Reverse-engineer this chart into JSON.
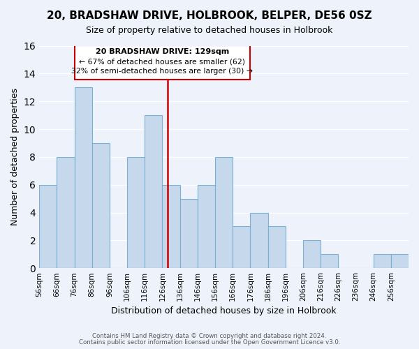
{
  "title": "20, BRADSHAW DRIVE, HOLBROOK, BELPER, DE56 0SZ",
  "subtitle": "Size of property relative to detached houses in Holbrook",
  "xlabel": "Distribution of detached houses by size in Holbrook",
  "ylabel": "Number of detached properties",
  "footnote1": "Contains HM Land Registry data © Crown copyright and database right 2024.",
  "footnote2": "Contains public sector information licensed under the Open Government Licence v3.0.",
  "bin_labels": [
    "56sqm",
    "66sqm",
    "76sqm",
    "86sqm",
    "96sqm",
    "106sqm",
    "116sqm",
    "126sqm",
    "136sqm",
    "146sqm",
    "156sqm",
    "166sqm",
    "176sqm",
    "186sqm",
    "196sqm",
    "206sqm",
    "216sqm",
    "226sqm",
    "236sqm",
    "246sqm",
    "256sqm"
  ],
  "counts": [
    6,
    8,
    13,
    9,
    0,
    8,
    11,
    6,
    5,
    6,
    8,
    3,
    4,
    3,
    0,
    2,
    1,
    0,
    0,
    1,
    1
  ],
  "bin_edges": [
    56,
    66,
    76,
    86,
    96,
    106,
    116,
    126,
    136,
    146,
    156,
    166,
    176,
    186,
    196,
    206,
    216,
    226,
    236,
    246,
    256,
    266
  ],
  "property_size": 129,
  "bar_color": "#c5d8ec",
  "bar_edge_color": "#7bafd4",
  "vline_color": "#cc0000",
  "box_text_line1": "20 BRADSHAW DRIVE: 129sqm",
  "box_text_line2": "← 67% of detached houses are smaller (62)",
  "box_text_line3": "32% of semi-detached houses are larger (30) →",
  "box_color": "#cc0000",
  "ylim": [
    0,
    16
  ],
  "yticks": [
    0,
    2,
    4,
    6,
    8,
    10,
    12,
    14,
    16
  ],
  "background_color": "#eef2fb",
  "grid_color": "#ffffff"
}
